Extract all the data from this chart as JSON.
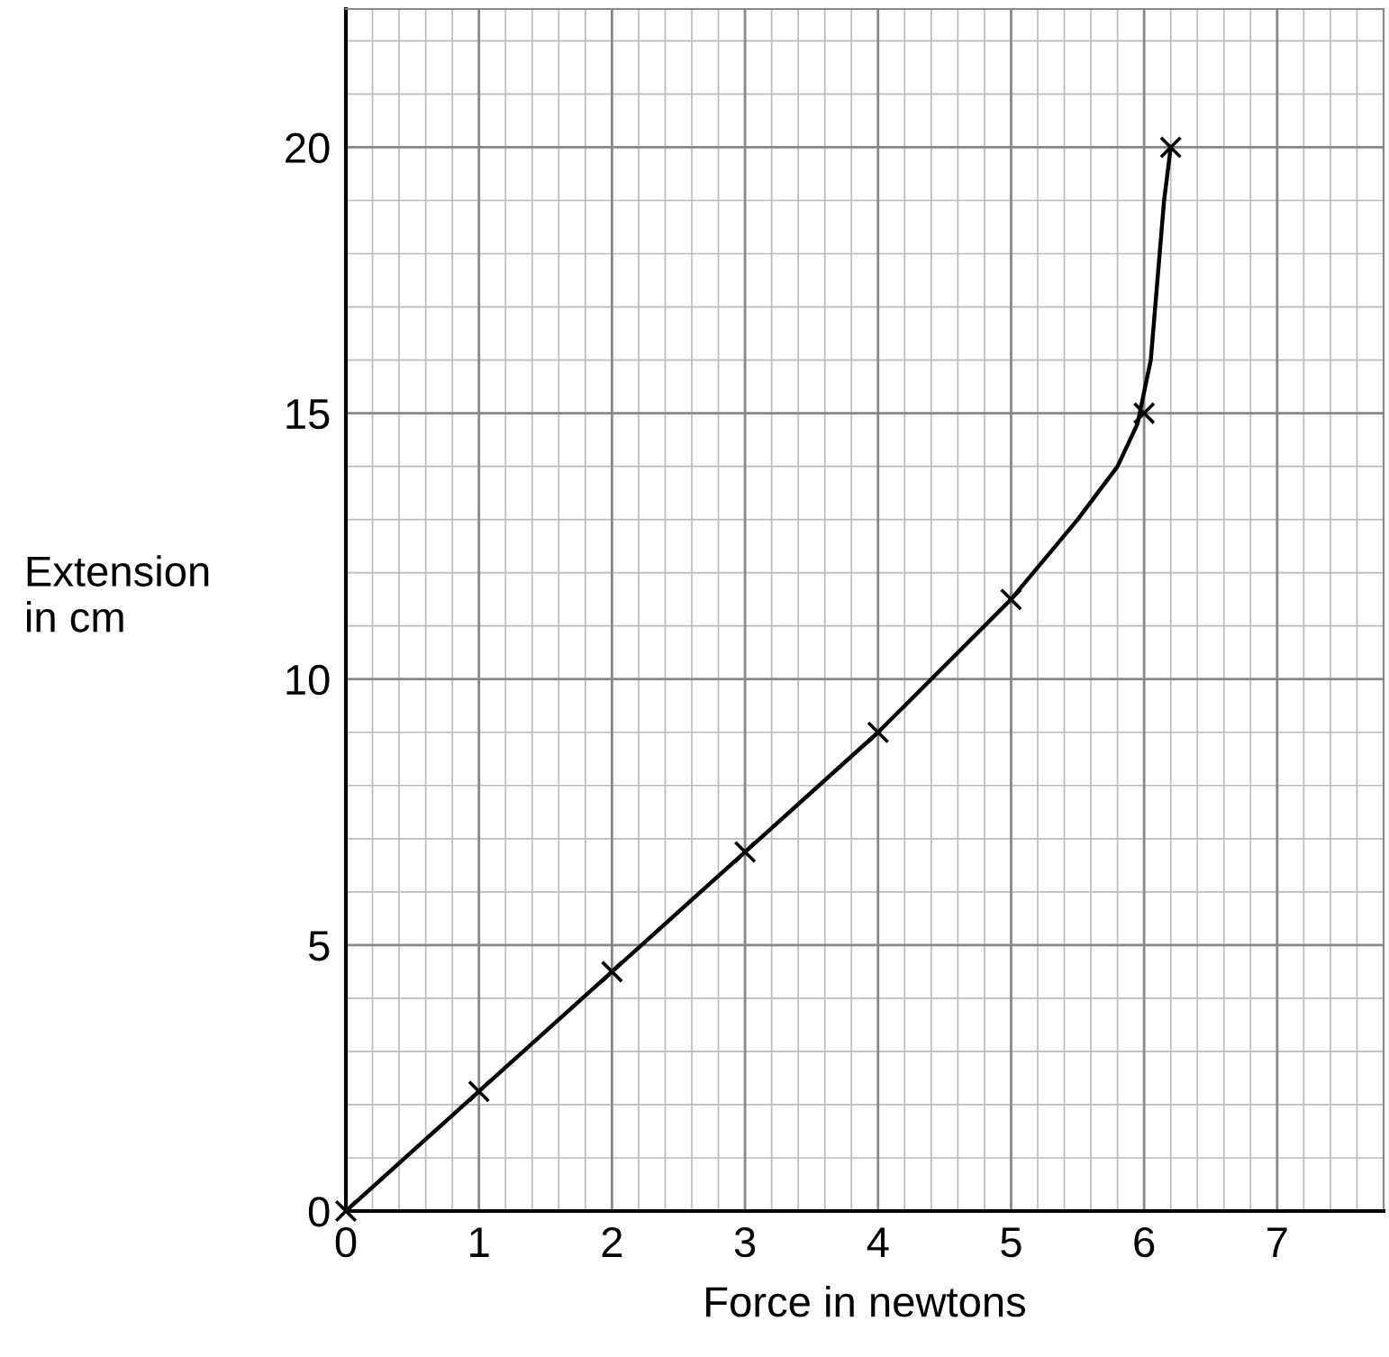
{
  "chart_data": {
    "type": "scatter",
    "xlabel": "Force in newtons",
    "ylabel": "Extension\nin cm",
    "series": [
      {
        "type": "line",
        "color": "#000000",
        "marker": "none",
        "x": [
          0,
          1,
          2,
          3,
          4,
          5,
          5.5,
          5.8,
          5.95,
          6.05,
          6.1,
          6.15,
          6.2
        ],
        "values": [
          0,
          2.25,
          4.5,
          6.75,
          9,
          11.5,
          13,
          14,
          14.8,
          16,
          17.5,
          19,
          20
        ]
      },
      {
        "color": "#000000",
        "marker": "cross",
        "x": [
          0,
          1,
          2,
          3,
          4,
          5,
          6,
          6.2
        ],
        "values": [
          0,
          2.25,
          4.5,
          6.75,
          9,
          11.5,
          15,
          20
        ]
      }
    ],
    "xlim": [
      0,
      7.8
    ],
    "ylim": [
      0,
      22.6
    ],
    "xticks": [
      0,
      1,
      2,
      3,
      4,
      5,
      6,
      7
    ],
    "yticks": [
      0,
      5,
      10,
      15,
      20
    ],
    "grid": true
  }
}
